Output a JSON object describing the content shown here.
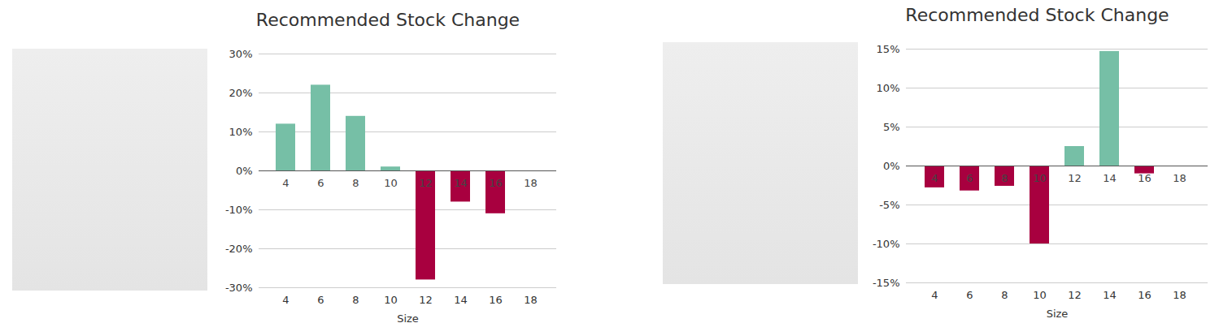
{
  "chart_data": [
    {
      "type": "bar",
      "title": "Recommended Stock Change",
      "x_label": "Size",
      "categories": [
        "4",
        "6",
        "8",
        "10",
        "12",
        "14",
        "16",
        "18"
      ],
      "values": [
        12,
        22,
        14,
        1,
        -28,
        -8,
        -11,
        0
      ],
      "colors": [
        "#76bfa6",
        "#76bfa6",
        "#76bfa6",
        "#76bfa6",
        "#a8003f",
        "#a8003f",
        "#a8003f",
        "#76bfa6"
      ],
      "ylim": [
        -30,
        30
      ],
      "yticks": [
        {
          "value": -30,
          "label": "-30%"
        },
        {
          "value": -20,
          "label": "-20%"
        },
        {
          "value": -10,
          "label": "-10%"
        },
        {
          "value": 0,
          "label": "0%"
        },
        {
          "value": 10,
          "label": "10%"
        },
        {
          "value": 20,
          "label": "20%"
        },
        {
          "value": 30,
          "label": "30%"
        }
      ],
      "grid": true
    },
    {
      "type": "bar",
      "title": "Recommended Stock Change",
      "x_label": "Size",
      "categories": [
        "4",
        "6",
        "8",
        "10",
        "12",
        "14",
        "16",
        "18"
      ],
      "values": [
        -2.8,
        -3.2,
        -2.6,
        -10,
        2.5,
        14.7,
        -1,
        0
      ],
      "colors": [
        "#a8003f",
        "#a8003f",
        "#a8003f",
        "#a8003f",
        "#76bfa6",
        "#76bfa6",
        "#a8003f",
        "#76bfa6"
      ],
      "ylim": [
        -15,
        15
      ],
      "yticks": [
        {
          "value": -15,
          "label": "-15%"
        },
        {
          "value": -10,
          "label": "-10%"
        },
        {
          "value": -5,
          "label": "-5%"
        },
        {
          "value": 0,
          "label": "0%"
        },
        {
          "value": 5,
          "label": "5%"
        },
        {
          "value": 10,
          "label": "10%"
        },
        {
          "value": 15,
          "label": "15%"
        }
      ],
      "grid": true
    }
  ]
}
